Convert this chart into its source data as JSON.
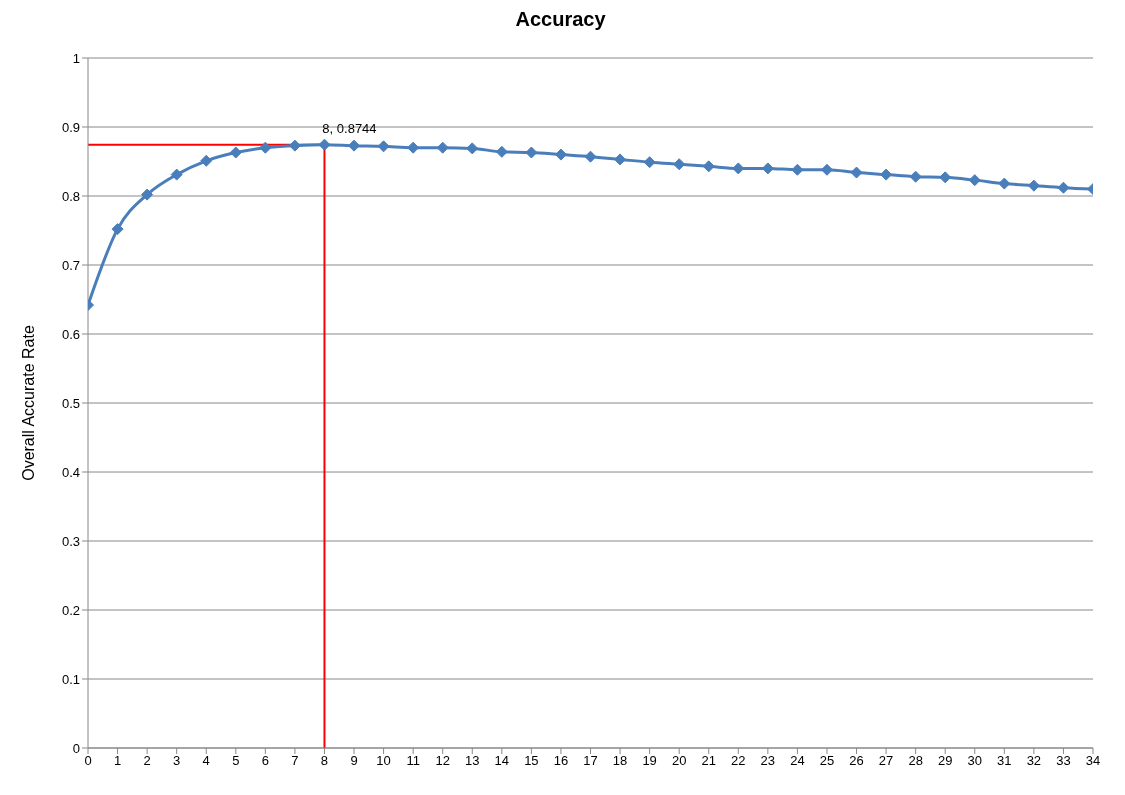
{
  "chart_data": {
    "type": "line",
    "title": "Accuracy",
    "ylabel": "Overall Accurate Rate",
    "x": [
      0,
      1,
      2,
      3,
      4,
      5,
      6,
      7,
      8,
      9,
      10,
      11,
      12,
      13,
      14,
      15,
      16,
      17,
      18,
      19,
      20,
      21,
      22,
      23,
      24,
      25,
      26,
      27,
      28,
      29,
      30,
      31,
      32,
      33,
      34
    ],
    "series": [
      {
        "color": "#4a7ebb",
        "values": [
          0.642,
          0.752,
          0.802,
          0.831,
          0.851,
          0.863,
          0.87,
          0.873,
          0.8744,
          0.873,
          0.872,
          0.87,
          0.87,
          0.869,
          0.864,
          0.863,
          0.86,
          0.857,
          0.853,
          0.849,
          0.846,
          0.843,
          0.84,
          0.84,
          0.838,
          0.838,
          0.834,
          0.831,
          0.828,
          0.827,
          0.823,
          0.818,
          0.815,
          0.812,
          0.81
        ]
      }
    ],
    "xlim": [
      0,
      34
    ],
    "xticks": [
      0,
      1,
      2,
      3,
      4,
      5,
      6,
      7,
      8,
      9,
      10,
      11,
      12,
      13,
      14,
      15,
      16,
      17,
      18,
      19,
      20,
      21,
      22,
      23,
      24,
      25,
      26,
      27,
      28,
      29,
      30,
      31,
      32,
      33,
      34
    ],
    "ylim": [
      0,
      1
    ],
    "yticks": [
      0,
      0.1,
      0.2,
      0.3,
      0.4,
      0.5,
      0.6,
      0.7,
      0.8,
      0.9,
      1
    ],
    "grid": "y",
    "marker": "diamond",
    "line_style": "solid",
    "legend": false,
    "ref_lines": [
      {
        "axis": "x",
        "value": 8,
        "color": "#ff0000"
      },
      {
        "axis": "y",
        "value": 0.8744,
        "color": "#ff0000"
      }
    ],
    "annotations": [
      {
        "text": "8, 0.8744",
        "x": 8,
        "y": 0.8744
      }
    ]
  }
}
